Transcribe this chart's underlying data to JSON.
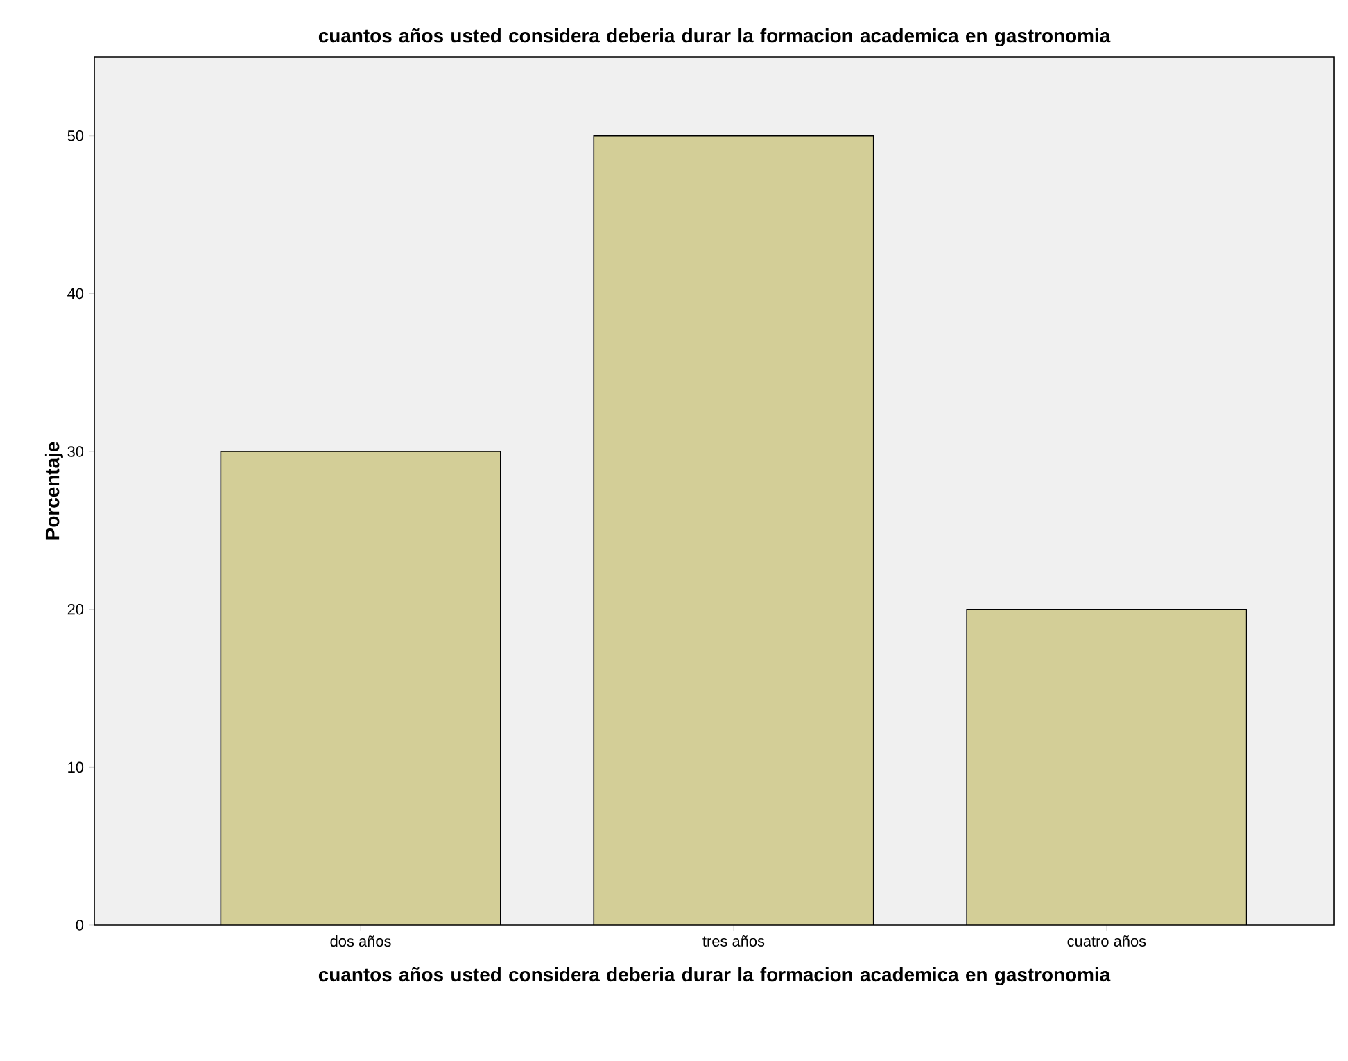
{
  "chart_data": {
    "type": "bar",
    "title": "cuantos años usted considera deberia durar la formacion academica en gastronomia",
    "xlabel": "cuantos años usted considera deberia durar la formacion academica en gastronomia",
    "ylabel": "Porcentaje",
    "categories": [
      "dos años",
      "tres años",
      "cuatro años"
    ],
    "values": [
      30,
      50,
      20
    ],
    "color": "#d3ce97",
    "ylim": [
      0,
      55
    ],
    "yticks": [
      0,
      10,
      20,
      30,
      40,
      50
    ]
  }
}
